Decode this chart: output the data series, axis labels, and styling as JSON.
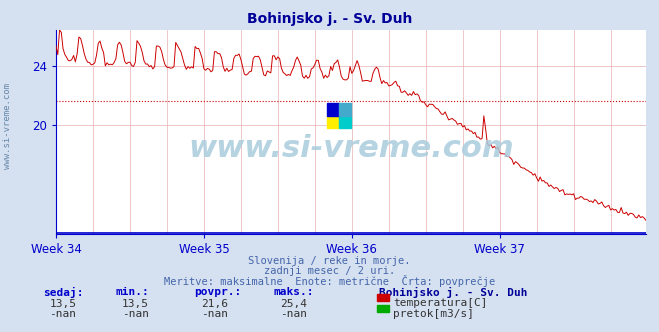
{
  "title": "Bohinjsko j. - Sv. Duh",
  "title_color": "#000099",
  "bg_color": "#d5e0f0",
  "plot_bg_color": "#ffffff",
  "grid_color": "#e8b0b0",
  "axis_color": "#0000cc",
  "line_color": "#cc0000",
  "avg_line_color": "#cc0000",
  "ylim": [
    12.5,
    26.5
  ],
  "yticks": [
    20,
    24
  ],
  "weeks": [
    "Week 34",
    "Week 35",
    "Week 36",
    "Week 37"
  ],
  "n_points": 336,
  "avg_value": 21.6,
  "max_value": 25.4,
  "min_value": 13.5,
  "current_value": 13.5,
  "subtitle1": "Slovenija / reke in morje.",
  "subtitle2": "zadnji mesec / 2 uri.",
  "subtitle3": "Meritve: maksimalne  Enote: metrične  Črta: povprečje",
  "footer_label1": "sedaj:",
  "footer_label2": "min.:",
  "footer_label3": "povpr.:",
  "footer_label4": "maks.:",
  "footer_val1": "13,5",
  "footer_val2": "13,5",
  "footer_val3": "21,6",
  "footer_val4": "25,4",
  "station_name": "Bohinjsko j. - Sv. Duh",
  "legend1": "temperatura[C]",
  "legend2": "pretok[m3/s]",
  "legend1_color": "#cc0000",
  "legend2_color": "#00aa00",
  "watermark": "www.si-vreme.com",
  "left_watermark": "www.si-vreme.com"
}
